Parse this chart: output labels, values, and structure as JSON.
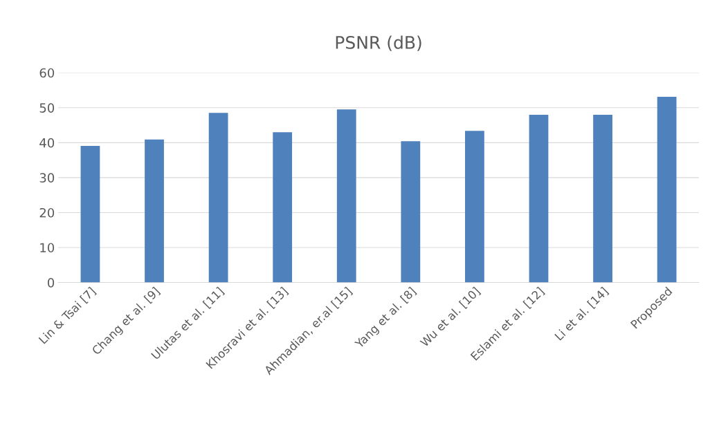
{
  "chart_data": {
    "type": "bar",
    "title": "PSNR (dB)",
    "categories": [
      "Lin & Tsai [7]",
      "Chang et al. [9]",
      "Ulutas et al. [11]",
      "Khosravi et al. [13]",
      "Ahmadian, er.al [15]",
      "Yang et al. [8]",
      "Wu et al. [10]",
      "Eslami et al. [12]",
      "Li et al. [14]",
      "Proposed"
    ],
    "values": [
      39.1,
      40.9,
      48.5,
      43.0,
      49.5,
      40.4,
      43.4,
      48.0,
      48.0,
      53.1
    ],
    "color": "#4f81bd",
    "ylim": [
      0,
      60
    ],
    "yticks": [
      0,
      10,
      20,
      30,
      40,
      50,
      60
    ],
    "grid": "y",
    "legend": false
  }
}
